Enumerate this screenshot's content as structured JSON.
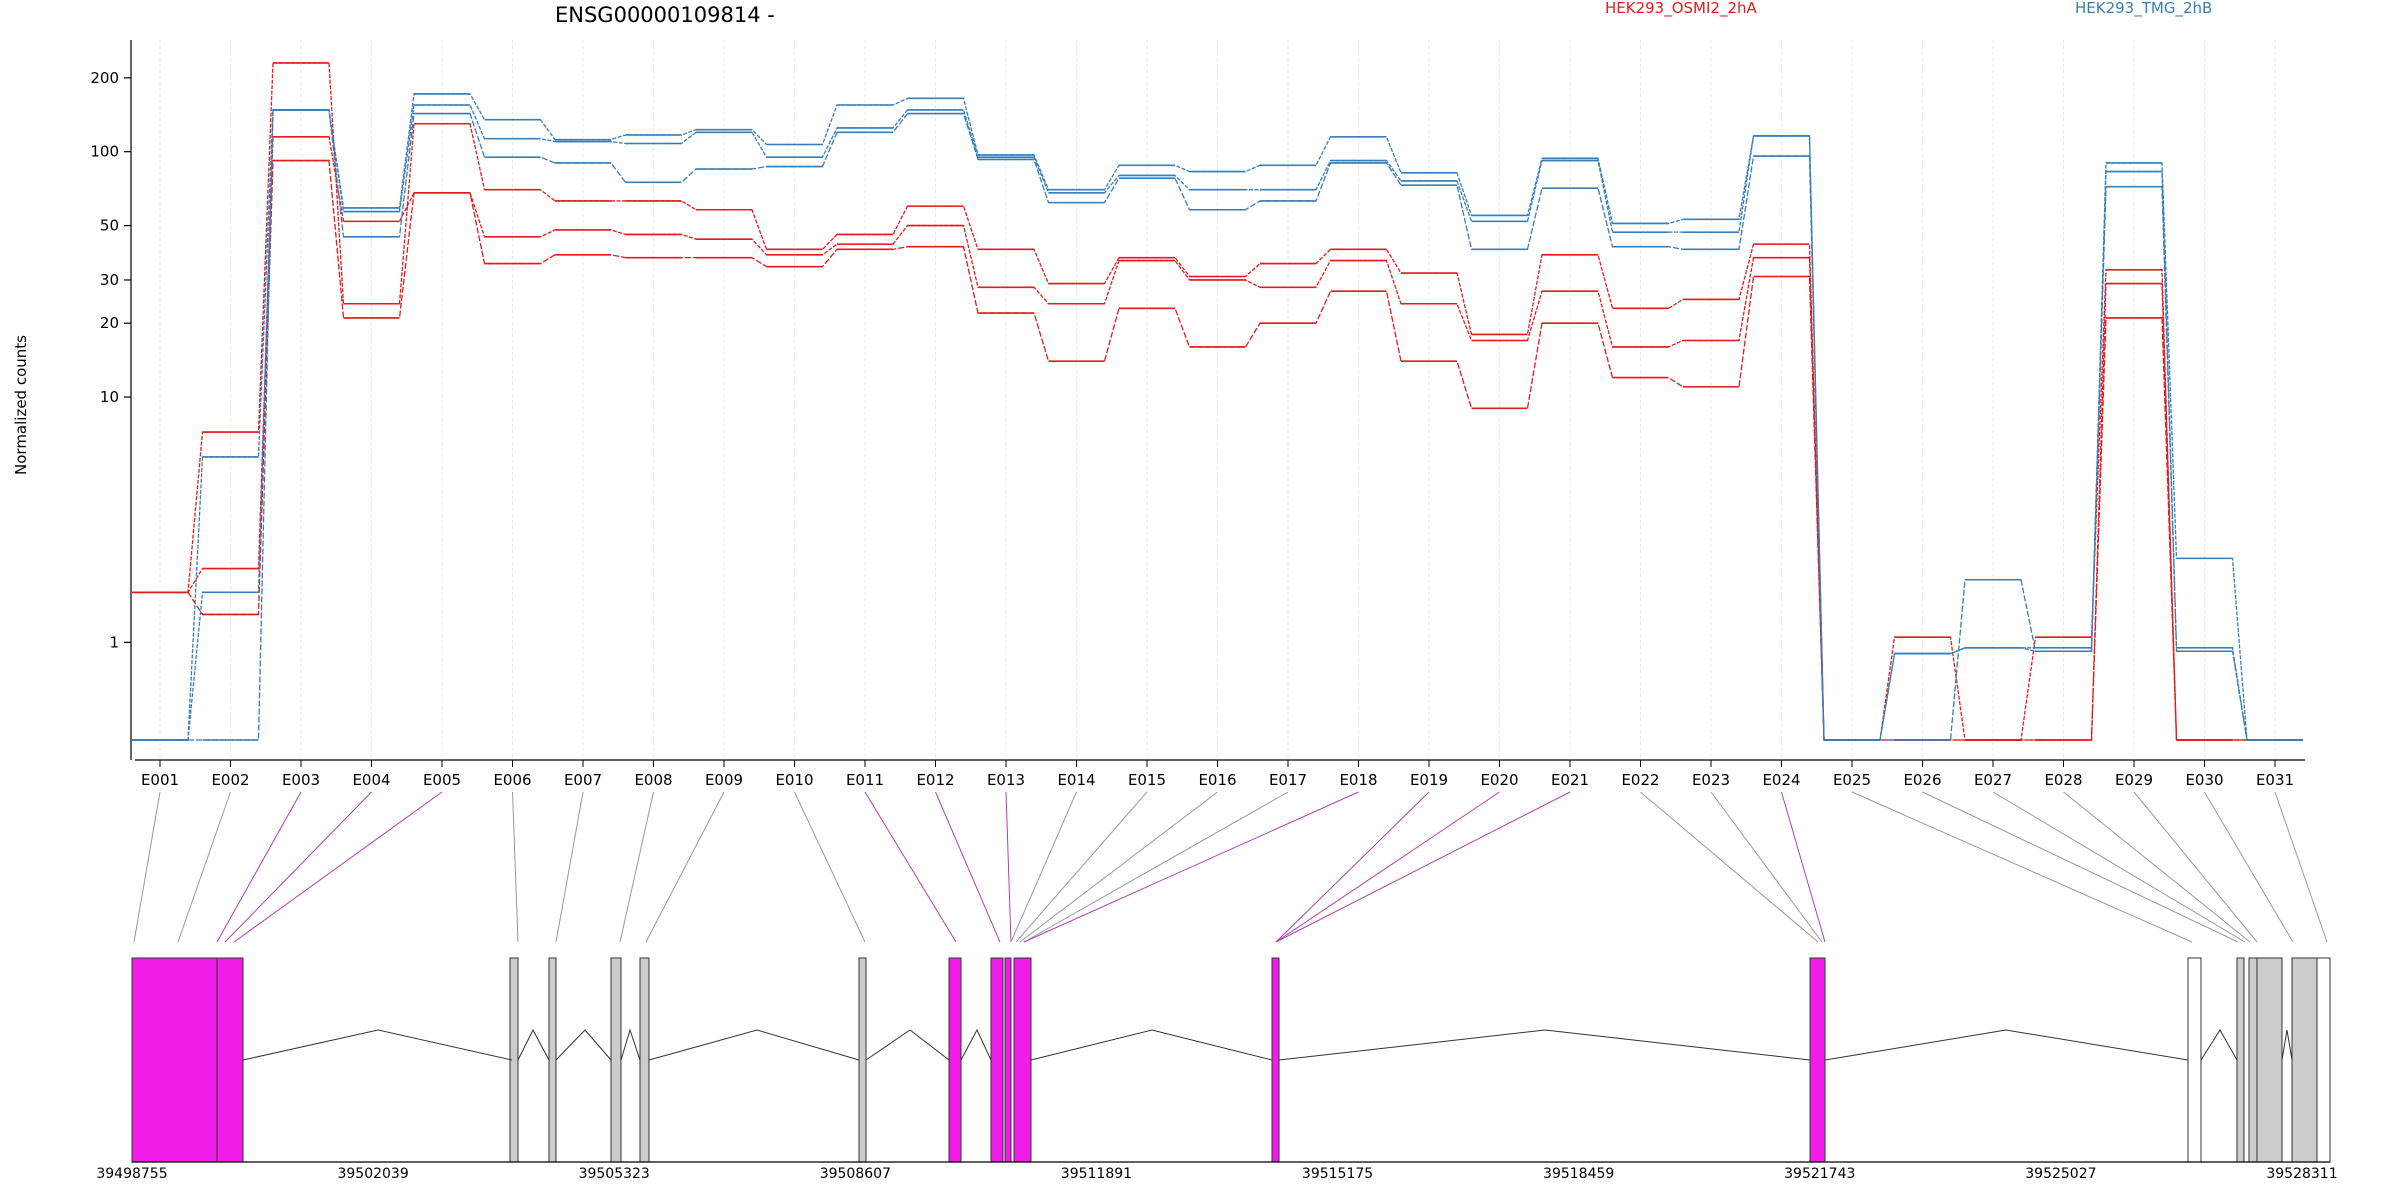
{
  "chart_data": {
    "type": "line",
    "title": "ENSG00000109814 -",
    "ylabel": "Normalized counts",
    "yscale": "log",
    "ylim": [
      0.4,
      280
    ],
    "yticks": [
      1,
      10,
      20,
      30,
      50,
      100,
      200
    ],
    "grid": "vertical dashed at exon bins",
    "legend_placement": "top",
    "categories": [
      "E001",
      "E002",
      "E003",
      "E004",
      "E005",
      "E006",
      "E007",
      "E008",
      "E009",
      "E010",
      "E011",
      "E012",
      "E013",
      "E014",
      "E015",
      "E016",
      "E017",
      "E018",
      "E019",
      "E020",
      "E021",
      "E022",
      "E023",
      "E024",
      "E025",
      "E026",
      "E027",
      "E028",
      "E029",
      "E030",
      "E031"
    ],
    "groups": [
      {
        "name": "HEK293_OSMI2_2hA",
        "color": "#e41a1c"
      },
      {
        "name": "HEK293_TMG_2hB",
        "color": "#377eb8"
      }
    ],
    "series": [
      {
        "group": 0,
        "values": [
          1.6,
          7.2,
          230,
          24,
          130,
          70,
          63,
          63,
          58,
          40,
          46,
          60,
          40,
          29,
          37,
          31,
          35,
          40,
          32,
          18,
          38,
          23,
          25,
          42,
          0.4,
          1.05,
          0.4,
          1.05,
          33,
          0.4,
          0.4
        ]
      },
      {
        "group": 0,
        "values": [
          1.6,
          2.0,
          115,
          52,
          68,
          45,
          48,
          46,
          44,
          38,
          42,
          50,
          28,
          24,
          36,
          30,
          28,
          36,
          24,
          17,
          27,
          16,
          17,
          37,
          0.4,
          0.4,
          0.4,
          0.4,
          29,
          0.4,
          0.4
        ]
      },
      {
        "group": 0,
        "values": [
          1.6,
          1.3,
          92,
          21,
          68,
          35,
          38,
          37,
          37,
          34,
          40,
          41,
          22,
          14,
          23,
          16,
          20,
          27,
          14,
          9,
          20,
          12,
          11,
          31,
          0.4,
          0.4,
          0.4,
          0.4,
          21,
          0.4,
          0.4
        ]
      },
      {
        "group": 1,
        "values": [
          0.4,
          5.7,
          148,
          59,
          172,
          135,
          112,
          117,
          123,
          107,
          155,
          165,
          97,
          70,
          88,
          83,
          88,
          115,
          82,
          55,
          94,
          51,
          53,
          116,
          0.4,
          0.9,
          0.95,
          0.92,
          90,
          2.2,
          0.4
        ]
      },
      {
        "group": 1,
        "values": [
          0.4,
          1.6,
          148,
          57,
          155,
          113,
          110,
          108,
          120,
          95,
          125,
          148,
          95,
          68,
          80,
          70,
          70,
          92,
          76,
          52,
          92,
          47,
          47,
          116,
          0.4,
          0.9,
          0.95,
          0.95,
          83,
          0.95,
          0.4
        ]
      },
      {
        "group": 1,
        "values": [
          0.4,
          0.4,
          148,
          45,
          143,
          95,
          90,
          75,
          85,
          87,
          120,
          143,
          93,
          62,
          78,
          58,
          63,
          90,
          73,
          40,
          71,
          41,
          40,
          96,
          0.4,
          0.4,
          1.8,
          0.92,
          72,
          0.92,
          0.4
        ]
      }
    ],
    "gene_model": {
      "coordinate_labels": [
        "39498755",
        "39502039",
        "39505323",
        "39508607",
        "39511891",
        "39515175",
        "39518459",
        "39521743",
        "39525027",
        "39528311"
      ]
    }
  }
}
